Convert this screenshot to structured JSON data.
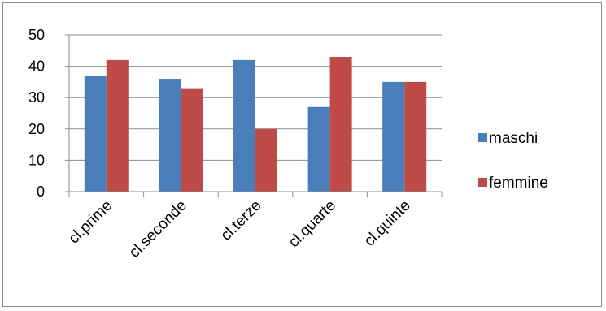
{
  "chart_data": {
    "type": "bar",
    "categories": [
      "cl.prime",
      "cl.seconde",
      "cl.terze",
      "cl.quarte",
      "cl.quinte"
    ],
    "series": [
      {
        "name": "maschi",
        "values": [
          37,
          36,
          42,
          27,
          35
        ],
        "color": "#4a7ebb"
      },
      {
        "name": "femmine",
        "values": [
          42,
          33,
          20,
          43,
          35
        ],
        "color": "#be4b48"
      }
    ],
    "y_ticks": [
      "0",
      "10",
      "20",
      "30",
      "40",
      "50"
    ],
    "ylim": [
      0,
      50
    ],
    "grid": true,
    "legend_position": "right",
    "title": "",
    "xlabel": "",
    "ylabel": ""
  }
}
